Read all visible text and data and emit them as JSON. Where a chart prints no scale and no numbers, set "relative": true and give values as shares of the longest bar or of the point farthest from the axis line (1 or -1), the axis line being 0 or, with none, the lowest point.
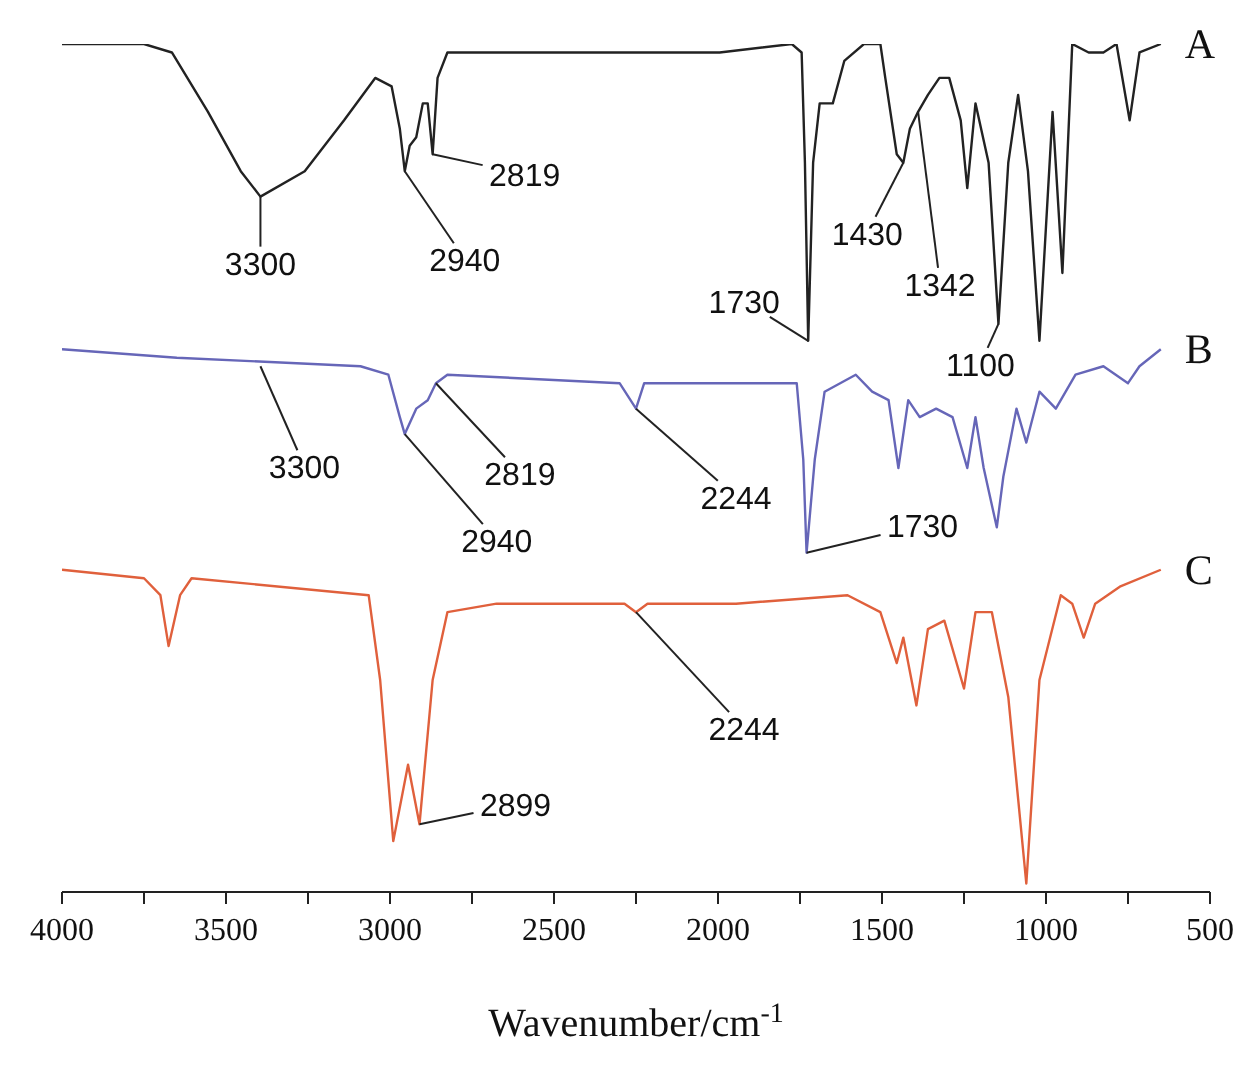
{
  "chart_data": {
    "type": "line",
    "relative": true,
    "xlabel": "Wavenumber/cm$^{-1}$",
    "xlim": [
      4000,
      500
    ],
    "xticks": [
      4000,
      {
        "value": 3750,
        "label": null
      },
      3500,
      {
        "value": 3250,
        "label": null
      },
      3000,
      {
        "value": 2750,
        "label": null
      },
      2500,
      {
        "value": 2250,
        "label": null
      },
      2000,
      {
        "value": 1750,
        "label": null
      },
      1500,
      {
        "value": 1250,
        "label": null
      },
      1000,
      {
        "value": 750,
        "label": null
      },
      500
    ],
    "series": [
      {
        "name": "A",
        "color": "#222222",
        "x": [
          4000,
          3750,
          3665,
          3555,
          3455,
          3395,
          3260,
          3140,
          3045,
          2995,
          2970,
          2955,
          2940,
          2920,
          2900,
          2885,
          2870,
          2855,
          2825,
          2725,
          2480,
          2335,
          2140,
          1995,
          1775,
          1745,
          1735,
          1725,
          1710,
          1690,
          1650,
          1615,
          1555,
          1505,
          1490,
          1455,
          1435,
          1415,
          1390,
          1360,
          1325,
          1295,
          1260,
          1240,
          1215,
          1175,
          1145,
          1115,
          1085,
          1055,
          1020,
          980,
          950,
          920,
          870,
          825,
          785,
          745,
          715,
          650
        ],
        "values": [
          1.0,
          1.0,
          0.99,
          0.92,
          0.85,
          0.82,
          0.85,
          0.91,
          0.96,
          0.95,
          0.9,
          0.85,
          0.88,
          0.89,
          0.93,
          0.93,
          0.87,
          0.96,
          0.99,
          0.99,
          0.99,
          0.99,
          0.99,
          0.99,
          1.0,
          0.99,
          0.86,
          0.65,
          0.86,
          0.93,
          0.93,
          0.98,
          1.0,
          1.0,
          0.96,
          0.87,
          0.86,
          0.9,
          0.92,
          0.94,
          0.96,
          0.96,
          0.91,
          0.83,
          0.93,
          0.86,
          0.67,
          0.86,
          0.94,
          0.85,
          0.65,
          0.92,
          0.73,
          1.0,
          0.99,
          0.99,
          1.0,
          0.91,
          0.99,
          1.0
        ]
      },
      {
        "name": "B",
        "color": "#6666b8",
        "x": [
          4000,
          3650,
          3090,
          3005,
          2970,
          2955,
          2920,
          2885,
          2860,
          2825,
          2300,
          2250,
          2225,
          1760,
          1740,
          1730,
          1705,
          1675,
          1580,
          1530,
          1480,
          1450,
          1420,
          1385,
          1335,
          1285,
          1240,
          1215,
          1190,
          1150,
          1130,
          1090,
          1060,
          1020,
          970,
          910,
          825,
          750,
          715,
          650
        ],
        "values": [
          0.64,
          0.63,
          0.62,
          0.61,
          0.56,
          0.54,
          0.57,
          0.58,
          0.6,
          0.61,
          0.6,
          0.57,
          0.6,
          0.6,
          0.51,
          0.4,
          0.51,
          0.59,
          0.61,
          0.59,
          0.58,
          0.5,
          0.58,
          0.56,
          0.57,
          0.56,
          0.5,
          0.56,
          0.5,
          0.43,
          0.49,
          0.57,
          0.53,
          0.59,
          0.57,
          0.61,
          0.62,
          0.6,
          0.62,
          0.64
        ]
      },
      {
        "name": "C",
        "color": "#e0603c",
        "x": [
          4000,
          3750,
          3700,
          3675,
          3640,
          3605,
          3065,
          3030,
          2990,
          2945,
          2910,
          2870,
          2825,
          2675,
          2285,
          2250,
          2215,
          1945,
          1605,
          1505,
          1455,
          1435,
          1395,
          1360,
          1310,
          1250,
          1215,
          1165,
          1115,
          1060,
          1020,
          955,
          920,
          885,
          850,
          775,
          650
        ],
        "values": [
          0.38,
          0.37,
          0.35,
          0.29,
          0.35,
          0.37,
          0.35,
          0.25,
          0.06,
          0.15,
          0.08,
          0.25,
          0.33,
          0.34,
          0.34,
          0.33,
          0.34,
          0.34,
          0.35,
          0.33,
          0.27,
          0.3,
          0.22,
          0.31,
          0.32,
          0.24,
          0.33,
          0.33,
          0.23,
          0.01,
          0.25,
          0.35,
          0.34,
          0.3,
          0.34,
          0.36,
          0.38
        ]
      }
    ],
    "annotations": [
      {
        "text": "3300",
        "x": 3395,
        "y": 0.82
      },
      {
        "text": "2940",
        "x": 2955,
        "y": 0.85
      },
      {
        "text": "2819",
        "x": 2870,
        "y": 0.87
      },
      {
        "text": "1730",
        "x": 1725,
        "y": 0.65
      },
      {
        "text": "1430",
        "x": 1435,
        "y": 0.86
      },
      {
        "text": "1342",
        "x": 1390,
        "y": 0.92
      },
      {
        "text": "1100",
        "x": 1145,
        "y": 0.67
      },
      {
        "text": "3300",
        "x": 3395,
        "y": 0.62
      },
      {
        "text": "2940",
        "x": 2955,
        "y": 0.54
      },
      {
        "text": "2819",
        "x": 2860,
        "y": 0.6
      },
      {
        "text": "2244",
        "x": 2250,
        "y": 0.57
      },
      {
        "text": "1730",
        "x": 1730,
        "y": 0.4
      },
      {
        "text": "2244",
        "x": 2250,
        "y": 0.33
      },
      {
        "text": "2899",
        "x": 2910,
        "y": 0.08
      }
    ]
  }
}
